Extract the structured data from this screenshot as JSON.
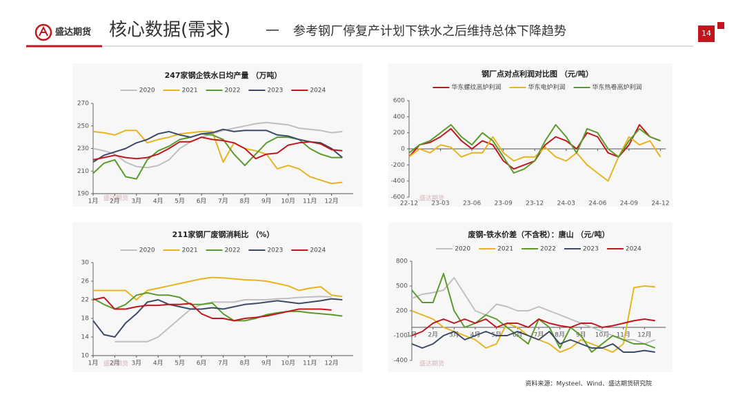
{
  "header": {
    "logo_text": "盛达期货",
    "title": "核心数据(需求)",
    "separator": "—",
    "subtitle": "参考钢厂停复产计划下铁水之后维持总体下降趋势",
    "page_number": "14"
  },
  "source": "资料来源：Mysteel、Wind、盛达期货研究院",
  "chart_data": [
    {
      "type": "line",
      "title": "247家钢企铁水日均产量 （万吨）",
      "x": [
        1,
        1.5,
        2,
        2.5,
        3,
        3.5,
        4,
        4.5,
        5,
        5.5,
        6,
        6.5,
        7,
        7.5,
        8,
        8.5,
        9,
        9.5,
        10,
        10.5,
        11,
        11.5,
        12,
        12.5
      ],
      "xlim": [
        1,
        13
      ],
      "xticks": [
        {
          "value": 1,
          "label": "1月"
        },
        {
          "value": 2,
          "label": "2月"
        },
        {
          "value": 3,
          "label": "3月"
        },
        {
          "value": 4,
          "label": "4月"
        },
        {
          "value": 5,
          "label": "5月"
        },
        {
          "value": 6,
          "label": "6月"
        },
        {
          "value": 7,
          "label": "7月"
        },
        {
          "value": 8,
          "label": "8月"
        },
        {
          "value": 9,
          "label": "9月"
        },
        {
          "value": 10,
          "label": "10月"
        },
        {
          "value": 11,
          "label": "11月"
        },
        {
          "value": 12,
          "label": "12月"
        }
      ],
      "ylim": [
        190,
        270
      ],
      "yticks": [
        190,
        210,
        230,
        250,
        270
      ],
      "series": [
        {
          "name": "2020",
          "color": "#bfbfbf",
          "values": [
            230,
            228,
            225,
            218,
            214,
            213,
            215,
            220,
            230,
            236,
            240,
            243,
            246,
            248,
            250,
            252,
            253,
            252,
            251,
            248,
            247,
            246,
            244,
            245
          ]
        },
        {
          "name": "2021",
          "color": "#e8b320",
          "values": [
            245,
            244,
            242,
            246,
            246,
            235,
            238,
            240,
            243,
            244,
            245,
            245,
            218,
            235,
            230,
            228,
            225,
            212,
            215,
            212,
            205,
            202,
            199,
            200
          ]
        },
        {
          "name": "2022",
          "color": "#5a9a2b",
          "values": [
            208,
            217,
            220,
            205,
            203,
            220,
            228,
            232,
            238,
            240,
            243,
            242,
            238,
            225,
            215,
            225,
            235,
            240,
            240,
            238,
            230,
            225,
            222,
            222
          ]
        },
        {
          "name": "2023",
          "color": "#3c4a66",
          "values": [
            218,
            224,
            227,
            230,
            235,
            238,
            243,
            245,
            242,
            240,
            243,
            244,
            247,
            245,
            246,
            246,
            246,
            242,
            241,
            238,
            236,
            235,
            230,
            222
          ]
        },
        {
          "name": "2024",
          "color": "#c0161d",
          "values": [
            220,
            222,
            224,
            222,
            221,
            222,
            225,
            230,
            236,
            236,
            240,
            238,
            237,
            235,
            230,
            221,
            225,
            226,
            233,
            235,
            236,
            234,
            229,
            228
          ]
        }
      ]
    },
    {
      "type": "line",
      "title": "钢厂点对点利润对比图 （元/吨）",
      "x": [
        0,
        1,
        2,
        3,
        4,
        5,
        6,
        7,
        8,
        9,
        10,
        11,
        12,
        13,
        14,
        15,
        16,
        17,
        18,
        19,
        20,
        21,
        22,
        23,
        24
      ],
      "xlim": [
        0,
        24.5
      ],
      "xticks": [
        {
          "value": 0,
          "label": "22-12"
        },
        {
          "value": 3,
          "label": "23-03"
        },
        {
          "value": 6,
          "label": "23-06"
        },
        {
          "value": 9,
          "label": "23-09"
        },
        {
          "value": 12,
          "label": "23-12"
        },
        {
          "value": 15,
          "label": "24-03"
        },
        {
          "value": 18,
          "label": "24-06"
        },
        {
          "value": 21,
          "label": "24-09"
        },
        {
          "value": 24,
          "label": "24-12"
        }
      ],
      "ylim": [
        -600,
        600
      ],
      "yticks": [
        -600,
        -400,
        -200,
        0,
        200,
        400,
        600
      ],
      "series": [
        {
          "name": "华东螺纹高炉利润",
          "color": "#c0161d",
          "values": [
            -100,
            50,
            80,
            150,
            250,
            100,
            0,
            100,
            50,
            -150,
            -250,
            -200,
            -150,
            50,
            150,
            100,
            0,
            200,
            150,
            -50,
            -100,
            50,
            300,
            150,
            100
          ]
        },
        {
          "name": "华东电炉利润",
          "color": "#e8b320",
          "values": [
            -100,
            0,
            -50,
            50,
            20,
            -100,
            -50,
            -50,
            150,
            -50,
            -150,
            -100,
            -100,
            20,
            -100,
            -150,
            -50,
            -200,
            -300,
            -400,
            -100,
            150,
            50,
            100,
            -100
          ]
        },
        {
          "name": "华东热卷高炉利润",
          "color": "#5a9a2b",
          "values": [
            -50,
            50,
            100,
            200,
            300,
            150,
            50,
            200,
            100,
            -100,
            -300,
            -250,
            -150,
            100,
            300,
            150,
            -50,
            250,
            200,
            0,
            -100,
            100,
            250,
            150,
            100
          ]
        }
      ]
    },
    {
      "type": "line",
      "title": "211家钢厂废钢消耗比 （%）",
      "x": [
        1,
        1.5,
        2,
        2.5,
        3,
        3.5,
        4,
        4.5,
        5,
        5.5,
        6,
        6.5,
        7,
        7.5,
        8,
        8.5,
        9,
        9.5,
        10,
        10.5,
        11,
        11.5,
        12,
        12.5
      ],
      "xlim": [
        1,
        13
      ],
      "xticks": [
        {
          "value": 1,
          "label": "1月"
        },
        {
          "value": 2,
          "label": "2月"
        },
        {
          "value": 3,
          "label": "3月"
        },
        {
          "value": 4,
          "label": "4月"
        },
        {
          "value": 5,
          "label": "5月"
        },
        {
          "value": 6,
          "label": "6月"
        },
        {
          "value": 7,
          "label": "7月"
        },
        {
          "value": 8,
          "label": "8月"
        },
        {
          "value": 9,
          "label": "9月"
        },
        {
          "value": 10,
          "label": "10月"
        },
        {
          "value": 11,
          "label": "11月"
        },
        {
          "value": 12,
          "label": "12月"
        }
      ],
      "ylim": [
        10,
        30
      ],
      "yticks": [
        10,
        14,
        18,
        22,
        26,
        30
      ],
      "series": [
        {
          "name": "2020",
          "color": "#bfbfbf",
          "values": [
            null,
            null,
            13,
            13,
            13,
            13,
            14,
            16,
            18,
            20,
            21,
            21.5,
            21.5,
            21.5,
            22,
            22,
            22,
            22.2,
            22.3,
            22.5,
            22.6,
            22.7,
            22.6,
            null
          ]
        },
        {
          "name": "2021",
          "color": "#e8b320",
          "values": [
            24,
            24,
            24,
            24,
            22,
            24,
            24.5,
            25,
            25.5,
            26,
            26.5,
            26.8,
            26.7,
            26.5,
            26.3,
            26.2,
            26,
            25.5,
            25,
            24,
            24.5,
            24.8,
            23,
            22.7
          ]
        },
        {
          "name": "2022",
          "color": "#5a9a2b",
          "values": [
            22.3,
            21,
            20,
            21,
            23,
            23.5,
            23,
            23,
            22.5,
            21,
            21,
            21.3,
            19,
            17.5,
            17.5,
            18,
            18.8,
            19.2,
            19.5,
            19.5,
            19.2,
            19,
            18.8,
            18.5
          ]
        },
        {
          "name": "2023",
          "color": "#3c4a66",
          "values": [
            17.5,
            14.5,
            14,
            17,
            19,
            21.5,
            22,
            21,
            20.5,
            20,
            20,
            20.3,
            20,
            20.5,
            21,
            21.2,
            21.5,
            21.8,
            21.5,
            21.2,
            21.5,
            21.8,
            22.2,
            22
          ]
        },
        {
          "name": "2024",
          "color": "#c0161d",
          "values": [
            22,
            22.5,
            20,
            20,
            20.5,
            20.8,
            20.8,
            21,
            21,
            21.2,
            19,
            18,
            18,
            17.5,
            18,
            18.2,
            18.5,
            19,
            19.5,
            20,
            20,
            20,
            19.8,
            null
          ]
        }
      ]
    },
    {
      "type": "line",
      "title": "废钢-铁水价差（不含税）：唐山 （元/吨）",
      "x_labels_at_zero": true,
      "x": [
        1,
        1.5,
        2,
        2.5,
        3,
        3.5,
        4,
        4.5,
        5,
        5.5,
        6,
        6.5,
        7,
        7.5,
        8,
        8.5,
        9,
        9.5,
        10,
        10.5,
        11,
        11.5,
        12,
        12.5
      ],
      "xlim": [
        1,
        13
      ],
      "xticks": [
        {
          "value": 1,
          "label": "1月"
        },
        {
          "value": 2,
          "label": "2月"
        },
        {
          "value": 3,
          "label": "3月"
        },
        {
          "value": 4,
          "label": "4月"
        },
        {
          "value": 5,
          "label": "5月"
        },
        {
          "value": 6,
          "label": "6月"
        },
        {
          "value": 7,
          "label": "7月"
        },
        {
          "value": 8,
          "label": "8月"
        },
        {
          "value": 9,
          "label": "9月"
        },
        {
          "value": 10,
          "label": "10月"
        },
        {
          "value": 11,
          "label": "11月"
        },
        {
          "value": 12,
          "label": "12月"
        }
      ],
      "ylim": [
        -400,
        800
      ],
      "yticks": [
        -400,
        -100,
        200,
        500,
        800
      ],
      "series": [
        {
          "name": "2020",
          "color": "#bfbfbf",
          "values": [
            350,
            400,
            420,
            450,
            600,
            400,
            200,
            150,
            280,
            250,
            200,
            200,
            250,
            200,
            150,
            100,
            50,
            0,
            -50,
            -100,
            -150,
            -150,
            -200,
            -150
          ]
        },
        {
          "name": "2021",
          "color": "#e8b320",
          "values": [
            200,
            150,
            100,
            0,
            -50,
            -100,
            -150,
            -250,
            -200,
            50,
            0,
            -100,
            -150,
            -200,
            -300,
            -250,
            -150,
            -200,
            -250,
            -300,
            -200,
            480,
            500,
            490
          ]
        },
        {
          "name": "2022",
          "color": "#5a9a2b",
          "values": [
            450,
            300,
            300,
            650,
            200,
            0,
            50,
            150,
            100,
            0,
            -100,
            -200,
            100,
            0,
            -250,
            0,
            -100,
            -300,
            -200,
            -100,
            -150,
            -200,
            -200,
            -250
          ]
        },
        {
          "name": "2023",
          "color": "#3c4a66",
          "values": [
            -200,
            -250,
            -200,
            -100,
            -50,
            -150,
            -100,
            -50,
            -100,
            -100,
            -50,
            -100,
            -150,
            -50,
            -200,
            -150,
            -200,
            -250,
            -250,
            -200,
            -300,
            -300,
            -280,
            -300
          ]
        },
        {
          "name": "2024",
          "color": "#c0161d",
          "values": [
            -100,
            -50,
            50,
            100,
            50,
            100,
            50,
            100,
            0,
            50,
            50,
            0,
            100,
            50,
            20,
            0,
            50,
            50,
            0,
            20,
            50,
            80,
            100,
            80
          ]
        }
      ]
    }
  ]
}
